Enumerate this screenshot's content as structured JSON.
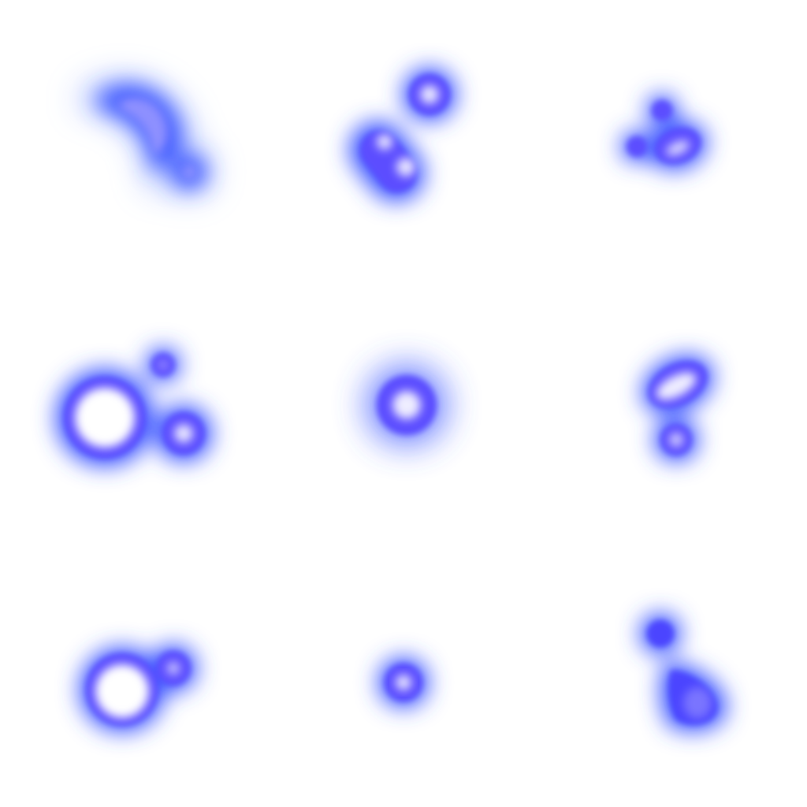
{
  "scene": {
    "background_color": "#ffffff",
    "glow_color": "#3a5cff",
    "rim_color": "#5a4dff",
    "core_color": "#ffffff",
    "cell_count": 9
  }
}
